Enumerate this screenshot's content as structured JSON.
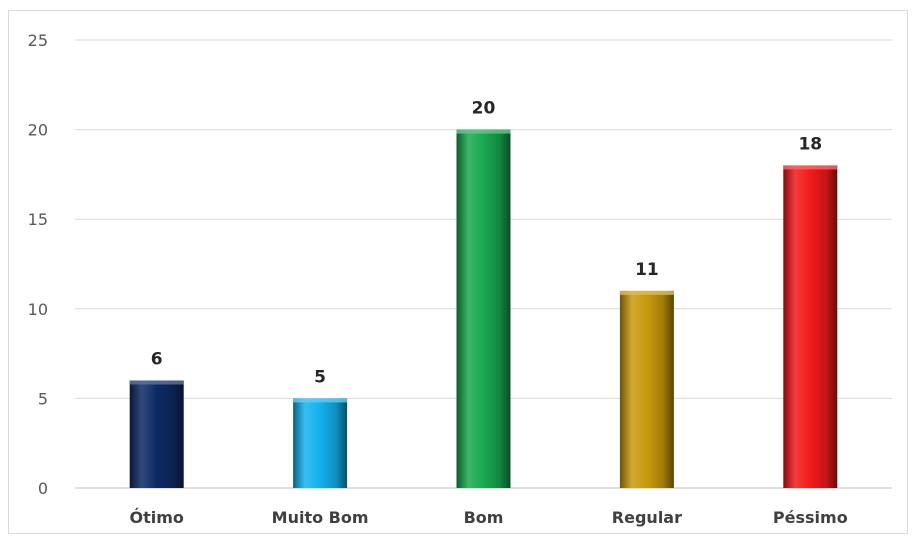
{
  "chart_data": {
    "type": "bar",
    "categories": [
      "Ótimo",
      "Muito Bom",
      "Bom",
      "Regular",
      "Péssimo"
    ],
    "values": [
      6,
      5,
      20,
      11,
      18
    ],
    "data_labels": [
      "6",
      "5",
      "20",
      "11",
      "18"
    ],
    "bar_colors": [
      "#0d2a66",
      "#12b2ef",
      "#17a94f",
      "#c89a0c",
      "#f21a1a"
    ],
    "ylim": [
      0,
      25
    ],
    "yticks": [
      0,
      5,
      10,
      15,
      20,
      25
    ],
    "ytick_labels": [
      "0",
      "5",
      "10",
      "15",
      "20",
      "25"
    ],
    "grid": true,
    "legend": "none",
    "title": "",
    "xlabel": "",
    "ylabel": ""
  }
}
